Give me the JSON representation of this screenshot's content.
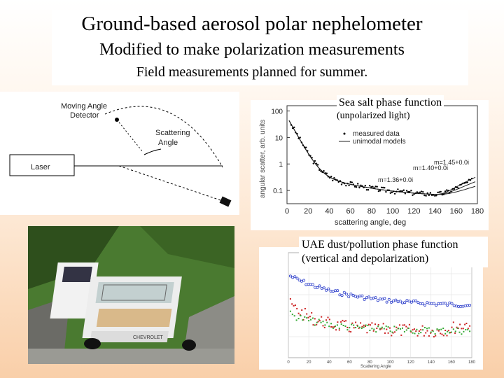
{
  "title": {
    "line1": "Ground-based aerosol polar nephelometer",
    "line2": "Modified to make polarization measurements",
    "line3": "Field measurements planned for summer."
  },
  "diagram": {
    "detector_label_1": "Moving Angle",
    "detector_label_2": "Detector",
    "scatter_label_1": "Scattering",
    "scatter_label_2": "Angle",
    "laser_label": "Laser"
  },
  "seasalt": {
    "caption1": "Sea salt phase function",
    "caption2": "(unpolarized light)",
    "ylabel": "angular scatter, arb. units",
    "xlabel": "scattering angle, deg",
    "legend_measured": "measured data",
    "legend_models": "unimodal models",
    "model_labels": [
      "m=1.45+0.0i",
      "m=1.40+0.0i",
      "m=1.36+0.0i"
    ],
    "yticks": [
      "100",
      "10",
      "1",
      "0.1"
    ],
    "xticks": [
      "0",
      "20",
      "40",
      "60",
      "80",
      "100",
      "120",
      "140",
      "160",
      "180"
    ]
  },
  "photo": {
    "plate": "CHEVROLET"
  },
  "uae": {
    "caption": "UAE dust/pollution phase function (vertical and depolarization)",
    "xlabel": "Scattering Angle",
    "xticks": [
      "0",
      "20",
      "40",
      "60",
      "80",
      "100",
      "120",
      "140",
      "160",
      "180"
    ],
    "colors": {
      "vertical": "#3344cc",
      "depol": "#cc2222",
      "green": "#33aa33"
    }
  }
}
